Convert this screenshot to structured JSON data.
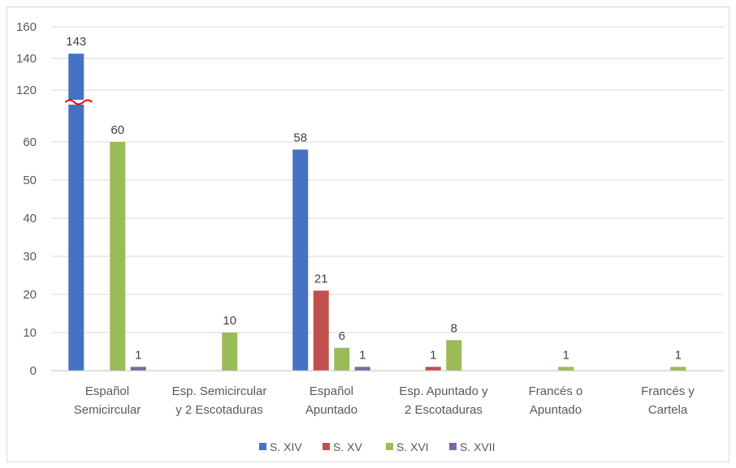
{
  "chart_data": {
    "type": "bar",
    "categories": [
      [
        "Español",
        "Semicircular"
      ],
      [
        "Esp. Semicircular",
        "y 2 Escotaduras"
      ],
      [
        "Español",
        "Apuntado"
      ],
      [
        "Esp. Apuntado y",
        "2 Escotaduras"
      ],
      [
        "Francés o",
        "Apuntado"
      ],
      [
        "Francés y",
        "Cartela"
      ]
    ],
    "series": [
      {
        "name": "S. XIV",
        "color": "#4472C4",
        "values": [
          143,
          0,
          58,
          0,
          0,
          0
        ]
      },
      {
        "name": "S. XV",
        "color": "#C0504D",
        "values": [
          0,
          0,
          21,
          1,
          0,
          0
        ]
      },
      {
        "name": "S. XVI",
        "color": "#9BBB59",
        "values": [
          60,
          10,
          6,
          8,
          1,
          1
        ]
      },
      {
        "name": "S. XVII",
        "color": "#8064A2",
        "values": [
          1,
          0,
          1,
          0,
          0,
          0
        ]
      }
    ],
    "data_labels": [
      {
        "series": 0,
        "category": 0,
        "text": "143"
      },
      {
        "series": 2,
        "category": 0,
        "text": "60"
      },
      {
        "series": 3,
        "category": 0,
        "text": "1"
      },
      {
        "series": 2,
        "category": 1,
        "text": "10"
      },
      {
        "series": 0,
        "category": 2,
        "text": "58"
      },
      {
        "series": 1,
        "category": 2,
        "text": "21"
      },
      {
        "series": 2,
        "category": 2,
        "text": "6"
      },
      {
        "series": 3,
        "category": 2,
        "text": "1"
      },
      {
        "series": 1,
        "category": 3,
        "text": "1"
      },
      {
        "series": 2,
        "category": 3,
        "text": "8"
      },
      {
        "series": 2,
        "category": 4,
        "text": "1"
      },
      {
        "series": 2,
        "category": 5,
        "text": "1"
      }
    ],
    "y_ticks_lower": [
      0,
      10,
      20,
      30,
      40,
      50,
      60
    ],
    "y_ticks_upper": [
      120,
      140,
      160
    ],
    "axis_break": true,
    "grid": true,
    "legend_position": "bottom",
    "title": "",
    "xlabel": "",
    "ylabel": ""
  }
}
